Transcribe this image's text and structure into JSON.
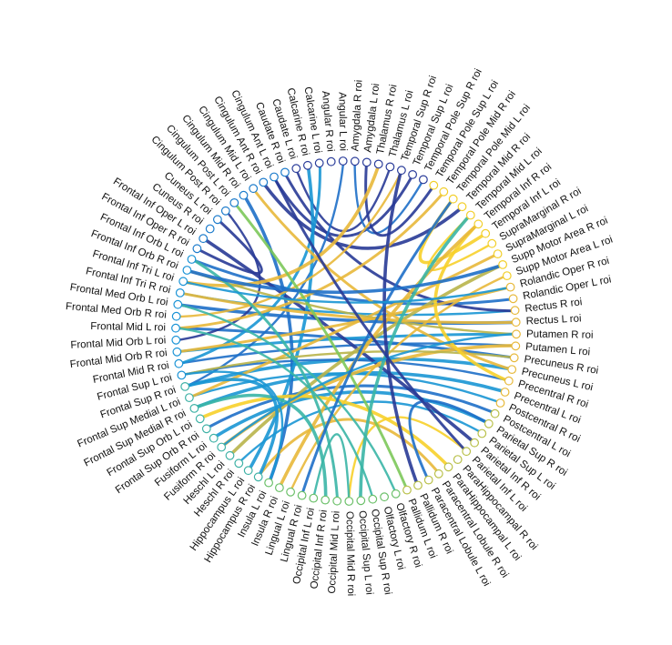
{
  "chart_data": {
    "type": "chord",
    "title": "",
    "regions": [
      "Amygdala L roi",
      "Thalamus R roi",
      "Thalamus L roi",
      "Temporal Sup R roi",
      "Temporal Sup L roi",
      "Temporal Pole Sup R roi",
      "Temporal Pole Sup L roi",
      "Temporal Pole Mid R roi",
      "Temporal Pole Mid L roi",
      "Temporal Mid R roi",
      "Temporal Mid L roi",
      "Temporal Inf R roi",
      "Temporal Inf L roi",
      "SupraMarginal R roi",
      "SupraMarginal L roi",
      "Supp Motor Area R roi",
      "Supp Motor Area L roi",
      "Rolandic Oper R roi",
      "Rolandic Oper L roi",
      "Rectus R roi",
      "Rectus L roi",
      "Putamen R roi",
      "Putamen L roi",
      "Precuneus R roi",
      "Precuneus L roi",
      "Precentral R roi",
      "Precentral L roi",
      "Postcentral R roi",
      "Postcentral L roi",
      "Parietal Sup R roi",
      "Parietal Sup L roi",
      "Parietal Inf R roi",
      "Parietal Inf L roi",
      "ParaHippocampal R roi",
      "ParaHippocampal L roi",
      "Paracentral Lobule R roi",
      "Paracentral Lobule L roi",
      "Pallidum R roi",
      "Pallidum L roi",
      "Olfactory R roi",
      "Olfactory L roi",
      "Occipital Sup R roi",
      "Occipital Sup L roi",
      "Occipital Mid R roi",
      "Occipital Mid L roi",
      "Occipital Inf R roi",
      "Occipital Inf L roi",
      "Lingual R roi",
      "Lingual L roi",
      "Insula R roi",
      "Insula L roi",
      "Hippocampus R roi",
      "Hippocampus L roi",
      "Heschl R roi",
      "Heschl L roi",
      "Fusiform R roi",
      "Fusiform L roi",
      "Frontal Sup Orb R roi",
      "Frontal Sup Orb L roi",
      "Frontal Sup Medial R roi",
      "Frontal Sup Medial L roi",
      "Frontal Sup R roi",
      "Frontal Sup L roi",
      "Frontal Mid R roi",
      "Frontal Mid Orb R roi",
      "Frontal Mid Orb L roi",
      "Frontal Mid L roi",
      "Frontal Med Orb R roi",
      "Frontal Med Orb L roi",
      "Frontal Inf Tri R roi",
      "Frontal Inf Tri L roi",
      "Frontal Inf Orb R roi",
      "Frontal Inf Orb L roi",
      "Frontal Inf Oper R roi",
      "Frontal Inf Oper L roi",
      "Cuneus R roi",
      "Cuneus L roi",
      "Cingulum Post R roi",
      "Cingulum Post L roi",
      "Cingulum Mid R roi",
      "Cingulum Mid L roi",
      "Cingulum Ant R roi",
      "Cingulum Ant L roi",
      "Caudate R roi",
      "Caudate L roi",
      "Calcarine R roi",
      "Calcarine L roi",
      "Angular R roi",
      "Angular L roi",
      "Amygdala R roi"
    ],
    "color_scale": [
      "#283a96",
      "#1e6fc8",
      "#1a96d4",
      "#3ab5a6",
      "#7cc85a",
      "#b8b44a",
      "#e8b83a",
      "#f7d02a"
    ],
    "links": [
      [
        "Frontal Mid R roi",
        "Putamen L roi",
        1
      ],
      [
        "Frontal Mid L roi",
        "Precuneus R roi",
        1
      ],
      [
        "Frontal Sup R roi",
        "Precuneus L roi",
        2
      ],
      [
        "Frontal Sup L roi",
        "Precentral R roi",
        1
      ],
      [
        "Frontal Mid Orb R roi",
        "Putamen R roi",
        2
      ],
      [
        "Frontal Med Orb L roi",
        "Rectus L roi",
        1
      ],
      [
        "Frontal Inf Tri R roi",
        "Rectus R roi",
        2
      ],
      [
        "Frontal Inf Orb L roi",
        "Rolandic Oper L roi",
        1
      ],
      [
        "Frontal Sup Medial R roi",
        "Precentral L roi",
        2
      ],
      [
        "Frontal Sup Medial L roi",
        "Postcentral R roi",
        2
      ],
      [
        "Frontal Sup Orb R roi",
        "Postcentral L roi",
        1
      ],
      [
        "Fusiform L roi",
        "Parietal Sup R roi",
        2
      ],
      [
        "Heschl R roi",
        "Parietal Sup L roi",
        2
      ],
      [
        "Cingulum Ant L roi",
        "Temporal Sup L roi",
        0
      ],
      [
        "Cingulum Ant R roi",
        "Temporal Mid R roi",
        0
      ],
      [
        "Caudate L roi",
        "Thalamus L roi",
        0
      ],
      [
        "Caudate R roi",
        "Rectus R roi",
        0
      ],
      [
        "Cingulum Mid R roi",
        "Insula L roi",
        1
      ],
      [
        "Cingulum Post R roi",
        "Frontal Mid Orb L roi",
        0
      ],
      [
        "Cuneus L roi",
        "Frontal Inf Oper R roi",
        0
      ],
      [
        "Frontal Inf Oper L roi",
        "Parietal Inf R roi",
        0
      ],
      [
        "Angular L roi",
        "Frontal Sup R roi",
        1
      ],
      [
        "Calcarine L roi",
        "Frontal Mid R roi",
        2
      ],
      [
        "Calcarine R roi",
        "Hippocampus L roi",
        2
      ],
      [
        "Amygdala R roi",
        "Temporal Pole Sup R roi",
        1
      ],
      [
        "Amygdala L roi",
        "Temporal Pole Sup L roi",
        0
      ],
      [
        "Thalamus R roi",
        "Frontal Inf Tri L roi",
        6
      ],
      [
        "Temporal Sup R roi",
        "Frontal Med Orb R roi",
        6
      ],
      [
        "Temporal Pole Mid R roi",
        "Frontal Mid L roi",
        6
      ],
      [
        "Temporal Pole Mid L roi",
        "Temporal Inf L roi",
        7
      ],
      [
        "Temporal Mid L roi",
        "SupraMarginal R roi",
        7
      ],
      [
        "SupraMarginal L roi",
        "Frontal Sup Medial L roi",
        6
      ],
      [
        "Supp Motor Area R roi",
        "Heschl L roi",
        5
      ],
      [
        "Supp Motor Area L roi",
        "Lingual L roi",
        6
      ],
      [
        "Rolandic Oper R roi",
        "Frontal Mid Orb R roi",
        6
      ],
      [
        "Putamen L roi",
        "Fusiform R roi",
        6
      ],
      [
        "Precuneus R roi",
        "Frontal Sup L roi",
        5
      ],
      [
        "Precuneus L roi",
        "Cingulum Mid L roi",
        6
      ],
      [
        "Precentral R roi",
        "Temporal Inf R roi",
        7
      ],
      [
        "Putamen R roi",
        "Frontal Inf Orb R roi",
        5
      ],
      [
        "Rectus L roi",
        "Frontal Inf Tri R roi",
        6
      ],
      [
        "Temporal Inf R roi",
        "Insula R roi",
        6
      ],
      [
        "Parietal Inf L roi",
        "Occipital Mid R roi",
        7
      ],
      [
        "Paracentral Lobule R roi",
        "Hippocampus R roi",
        6
      ],
      [
        "ParaHippocampal L roi",
        "Frontal Sup Orb L roi",
        7
      ],
      [
        "Occipital Sup R roi",
        "Frontal Mid L roi",
        3
      ],
      [
        "Occipital Mid L roi",
        "Frontal Inf Orb L roi",
        3
      ],
      [
        "Occipital Inf R roi",
        "Frontal Sup Medial R roi",
        3
      ],
      [
        "Olfactory R roi",
        "Frontal Med Orb L roi",
        3
      ],
      [
        "Pallidum L roi",
        "Cingulum Post L roi",
        4
      ],
      [
        "Occipital Sup L roi",
        "Temporal Mid L roi",
        3
      ],
      [
        "Occipital Inf L roi",
        "Occipital Mid R roi",
        3
      ],
      [
        "Paracentral Lobule L roi",
        "Parietal Sup R roi",
        1
      ],
      [
        "Pallidum R roi",
        "Temporal Sup R roi",
        0
      ],
      [
        "Fusiform R roi",
        "Putamen R roi",
        2
      ],
      [
        "Lingual R roi",
        "Temporal Pole Mid L roi",
        1
      ],
      [
        "Frontal Inf Orb R roi",
        "Supp Motor Area R roi",
        1
      ],
      [
        "Frontal Inf Tri L roi",
        "Rolandic Oper R roi",
        2
      ],
      [
        "Cingulum Ant L roi",
        "Parietal Inf L roi",
        0
      ],
      [
        "Hippocampus R roi",
        "Frontal Sup R roi",
        2
      ],
      [
        "Insula L roi",
        "Frontal Sup L roi",
        2
      ]
    ]
  }
}
